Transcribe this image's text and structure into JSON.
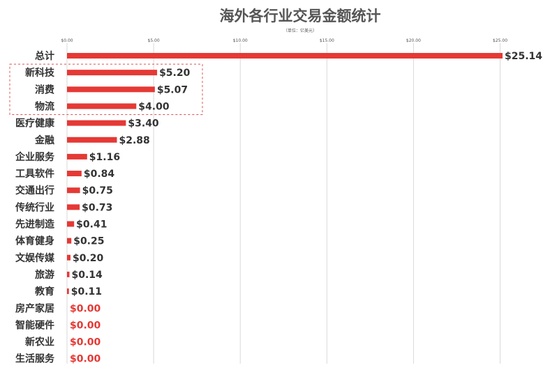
{
  "chart_data": {
    "type": "bar",
    "orientation": "horizontal",
    "title": "海外各行业交易金额统计",
    "subtitle": "（单位：亿美元）",
    "categories": [
      "总计",
      "新科技",
      "消费",
      "物流",
      "医疗健康",
      "金融",
      "企业服务",
      "工具软件",
      "交通出行",
      "传统行业",
      "先进制造",
      "体育健身",
      "文娱传媒",
      "旅游",
      "教育",
      "房产家居",
      "智能硬件",
      "新农业",
      "生活服务"
    ],
    "values": [
      25.14,
      5.2,
      5.07,
      4.0,
      3.4,
      2.88,
      1.16,
      0.84,
      0.75,
      0.73,
      0.41,
      0.25,
      0.2,
      0.14,
      0.11,
      0.0,
      0.0,
      0.0,
      0.0
    ],
    "value_labels": [
      "$25.14",
      "$5.20",
      "$5.07",
      "$4.00",
      "$3.40",
      "$2.88",
      "$1.16",
      "$0.84",
      "$0.75",
      "$0.73",
      "$0.41",
      "$0.25",
      "$0.20",
      "$0.14",
      "$0.11",
      "$0.00",
      "$0.00",
      "$0.00",
      "$0.00"
    ],
    "x_ticks": [
      "$0.00",
      "$5.00",
      "$10.00",
      "$15.00",
      "$20.00",
      "$25.00"
    ],
    "x_tick_values": [
      0,
      5,
      10,
      15,
      20,
      25
    ],
    "xlim": [
      0,
      25.14
    ],
    "grid": true,
    "legend": "none",
    "highlighted_categories": [
      "新科技",
      "消费",
      "物流"
    ],
    "colors": {
      "bar": "#e53935",
      "zero_label": "#e53935",
      "highlight_box": "#e05050",
      "grid": "#d9d9d9",
      "text": "#333333"
    }
  }
}
